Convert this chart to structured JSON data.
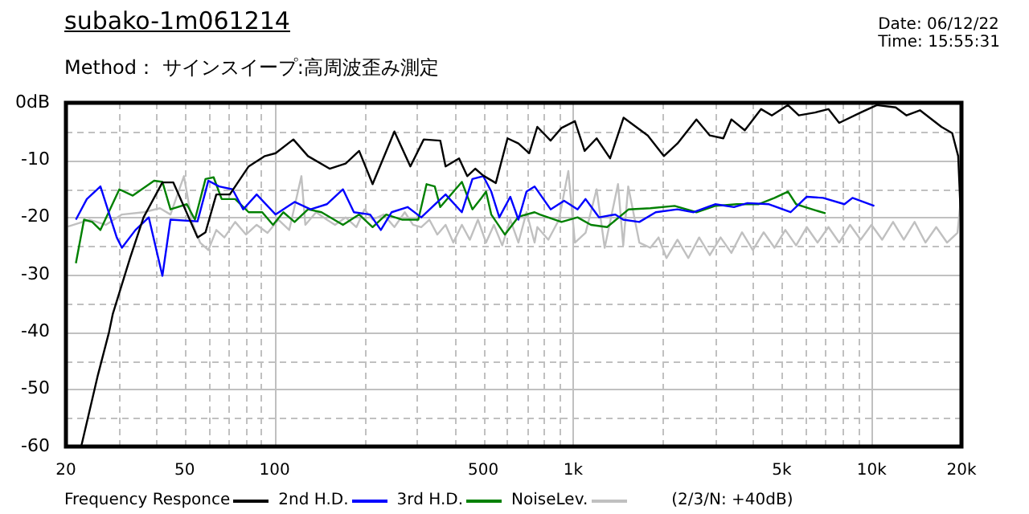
{
  "chart_data": {
    "type": "line",
    "title": "subako-1m061214",
    "subtitle": "Method： サインスイープ:高周波歪み測定",
    "annotations": [
      "Date: 06/12/22",
      "Time: 15:55:31",
      "(2/3/N: +40dB)"
    ],
    "log": "x",
    "grid": true,
    "legend": "bottom",
    "marker": "none",
    "xlim": [
      20,
      20000
    ],
    "xticks": [
      20,
      {
        "value": 30,
        "label": null
      },
      {
        "value": 40,
        "label": null
      },
      50,
      {
        "value": 60,
        "label": null
      },
      {
        "value": 70,
        "label": null
      },
      {
        "value": 80,
        "label": null
      },
      {
        "value": 90,
        "label": null
      },
      100,
      {
        "value": 200,
        "label": null
      },
      {
        "value": 300,
        "label": null
      },
      {
        "value": 400,
        "label": null
      },
      500,
      {
        "value": 600,
        "label": null
      },
      {
        "value": 700,
        "label": null
      },
      {
        "value": 800,
        "label": null
      },
      {
        "value": 900,
        "label": null
      },
      {
        "value": 1000,
        "label": "1k"
      },
      {
        "value": 2000,
        "label": null
      },
      {
        "value": 3000,
        "label": null
      },
      {
        "value": 4000,
        "label": null
      },
      {
        "value": 5000,
        "label": "5k"
      },
      {
        "value": 6000,
        "label": null
      },
      {
        "value": 7000,
        "label": null
      },
      {
        "value": 8000,
        "label": null
      },
      {
        "value": 9000,
        "label": null
      },
      {
        "value": 10000,
        "label": "10k"
      },
      {
        "value": 20000,
        "label": "20k"
      }
    ],
    "ylim": [
      -60,
      0
    ],
    "yticks": [
      -60,
      {
        "value": -55,
        "label": null
      },
      -50,
      {
        "value": -45,
        "label": null
      },
      -40,
      {
        "value": -35,
        "label": null
      },
      -30,
      {
        "value": -25,
        "label": null
      },
      -20,
      {
        "value": -15,
        "label": null
      },
      -10,
      {
        "value": -5,
        "label": null
      },
      {
        "value": 0,
        "label": "0dB"
      }
    ],
    "series": [
      {
        "name": "Frequency Responce",
        "color": "#000000",
        "x": [
          22.5,
          25.6,
          27.9,
          28.7,
          32.8,
          36.4,
          42.1,
          45.8,
          55.2,
          58.7,
          63.8,
          70.8,
          81.9,
          92.8,
          100.8,
          115.6,
          129.4,
          152.9,
          173,
          192,
          213,
          252,
          285,
          316,
          359,
          374,
          415,
          442,
          470,
          500,
          551,
          603,
          656,
          713,
          759,
          841,
          914,
          1014,
          1093,
          1199,
          1330,
          1476,
          1779,
          2014,
          2237,
          2589,
          2871,
          3186,
          3390,
          3760,
          4264,
          4632,
          5246,
          5704,
          6461,
          7167,
          7788,
          9187,
          10414,
          12040,
          13090,
          14520,
          17140,
          18620,
          19500,
          19900,
          20000
        ],
        "values": [
          -60,
          -47.5,
          -40,
          -36.9,
          -27.1,
          -20,
          -13.9,
          -13.9,
          -23.5,
          -22.6,
          -16,
          -16,
          -11.1,
          -9.3,
          -8.8,
          -6.4,
          -9.3,
          -11.5,
          -10.6,
          -8.4,
          -14.2,
          -5,
          -11.1,
          -6.4,
          -6.6,
          -11.1,
          -9.7,
          -12.8,
          -11.5,
          -12.7,
          -14,
          -6.2,
          -7.1,
          -8.8,
          -4.2,
          -6.6,
          -4.4,
          -3.2,
          -8.4,
          -6.2,
          -9.7,
          -2.6,
          -5.7,
          -9.3,
          -7.1,
          -2.9,
          -5.7,
          -6.2,
          -2.9,
          -4.8,
          -1.1,
          -2.2,
          -0.4,
          -2.2,
          -1.7,
          -1.1,
          -3.5,
          -1.7,
          -0.4,
          -0.8,
          -2.2,
          -1.3,
          -4.2,
          -5.3,
          -9.3,
          -20,
          -41
        ]
      },
      {
        "name": "2nd H.D.",
        "color": "#0000ff",
        "x": [
          21.6,
          23.5,
          26.1,
          29.6,
          30.8,
          34.2,
          37.9,
          42.1,
          44.8,
          55.2,
          60,
          65.2,
          72.3,
          78.5,
          87.1,
          100.8,
          116.7,
          132,
          149.6,
          169.5,
          184.4,
          209,
          227,
          246.7,
          279,
          310,
          337,
          374,
          424,
          460,
          500,
          532,
          566,
          616,
          656,
          698,
          743,
          841,
          933,
          1035,
          1101,
          1222,
          1383,
          1472,
          1667,
          1892,
          2237,
          2535,
          2992,
          3459,
          3838,
          4530,
          5353,
          6064,
          6874,
          8110,
          8630,
          10210
        ],
        "values": [
          -20.4,
          -16.8,
          -14.6,
          -23.5,
          -25.3,
          -22.2,
          -20,
          -30.2,
          -20.4,
          -20.7,
          -13.6,
          -14.6,
          -15.1,
          -18.6,
          -16,
          -19.5,
          -17.3,
          -18.6,
          -17.7,
          -15.1,
          -19.1,
          -19.5,
          -22.2,
          -19.1,
          -18.2,
          -20,
          -18.2,
          -16,
          -19.1,
          -13.3,
          -12.8,
          -15.5,
          -20,
          -16.4,
          -20.4,
          -15.5,
          -14.6,
          -18.6,
          -17.1,
          -18.6,
          -16.8,
          -20,
          -19.5,
          -20.4,
          -20.8,
          -19.1,
          -18.6,
          -19.1,
          -17.7,
          -18.2,
          -17.5,
          -17.7,
          -19.1,
          -16.4,
          -16.6,
          -17.7,
          -16.6,
          -18
        ]
      },
      {
        "name": "3rd H.D.",
        "color": "#008000",
        "x": [
          21.6,
          23,
          24.5,
          26.1,
          30.2,
          33.5,
          39.5,
          42.1,
          44.8,
          50.8,
          54.1,
          58.7,
          62.5,
          66.5,
          73.8,
          81.9,
          90.9,
          98.8,
          107,
          116.7,
          129.4,
          143.6,
          169.5,
          192,
          213,
          236.6,
          268,
          303,
          323,
          344,
          359,
          424,
          460,
          490,
          511,
          532,
          591,
          656,
          743,
          774,
          914,
          1035,
          1148,
          1300,
          1535,
          1815,
          2188,
          2589,
          2992,
          3532,
          4178,
          4732,
          5246,
          5585,
          6324,
          7015
        ],
        "values": [
          -28,
          -20.4,
          -20.8,
          -22.2,
          -15.1,
          -16.2,
          -13.6,
          -13.8,
          -18.6,
          -17.7,
          -20.4,
          -13.3,
          -13,
          -16.8,
          -16.8,
          -19.1,
          -19.1,
          -21.3,
          -19.1,
          -20.8,
          -18.6,
          -19.1,
          -21.3,
          -19.5,
          -21.7,
          -19.5,
          -20.4,
          -20.4,
          -14.2,
          -14.6,
          -18.2,
          -13.8,
          -18.6,
          -16.8,
          -15.5,
          -19.5,
          -23,
          -19.9,
          -19.1,
          -19.5,
          -20.8,
          -20,
          -21.3,
          -21.7,
          -18.6,
          -18.4,
          -18,
          -19.1,
          -18,
          -17.7,
          -17.7,
          -16.6,
          -15.5,
          -17.7,
          -18.6,
          -19.3
        ]
      },
      {
        "name": "NoiseLev.",
        "color": "#c0c0c0",
        "x": [
          20.3,
          24,
          27.2,
          30.8,
          36.4,
          41.3,
          44.8,
          49.7,
          52.9,
          56.3,
          60,
          63.8,
          67.9,
          73.8,
          80.2,
          87.1,
          94.7,
          103,
          112,
          123,
          126.8,
          137.8,
          149.6,
          159.4,
          173,
          188,
          200,
          213,
          232,
          252,
          273,
          291,
          310,
          330,
          351,
          374,
          397,
          424,
          451,
          480,
          511,
          543,
          579,
          616,
          656,
          698,
          743,
          759,
          826,
          897,
          964,
          1014,
          1101,
          1199,
          1276,
          1414,
          1472,
          1530,
          1667,
          1815,
          1933,
          2055,
          2237,
          2433,
          2644,
          2871,
          3120,
          3390,
          3680,
          4000,
          4350,
          4730,
          5140,
          5585,
          6064,
          6590,
          7167,
          7788,
          8470,
          9187,
          9990,
          10850,
          11800,
          12820,
          13930,
          15150,
          16460,
          17890,
          19400,
          19900
        ],
        "values": [
          -21.6,
          -20.4,
          -21.3,
          -19.5,
          -19.1,
          -18.4,
          -19.5,
          -12.8,
          -20.8,
          -24.4,
          -25.7,
          -22.2,
          -23.5,
          -20.8,
          -23,
          -21.3,
          -22.7,
          -20.4,
          -22.2,
          -12.8,
          -21.3,
          -19.1,
          -20.4,
          -21.3,
          -20,
          -21.7,
          -18.6,
          -20.4,
          -19.5,
          -21.7,
          -19.1,
          -21.3,
          -21.7,
          -20.4,
          -23,
          -21.3,
          -24.4,
          -21.3,
          -23.9,
          -20.4,
          -24.4,
          -21.3,
          -24.9,
          -20.4,
          -24.4,
          -19.1,
          -24.4,
          -21.7,
          -23.9,
          -20.4,
          -11.9,
          -24.4,
          -22.7,
          -15.1,
          -25.3,
          -14.2,
          -24.9,
          -14.6,
          -24.4,
          -25.3,
          -23.5,
          -27.1,
          -23.9,
          -27.1,
          -23.5,
          -26.6,
          -23.5,
          -26.2,
          -22.6,
          -25.7,
          -22.6,
          -25.3,
          -22.2,
          -24.9,
          -21.7,
          -24.4,
          -21.7,
          -24.4,
          -21.3,
          -23.9,
          -21.3,
          -23.9,
          -20.8,
          -23.9,
          -20.8,
          -24.4,
          -21.7,
          -24.4,
          -22.7,
          -16.8
        ]
      }
    ]
  }
}
